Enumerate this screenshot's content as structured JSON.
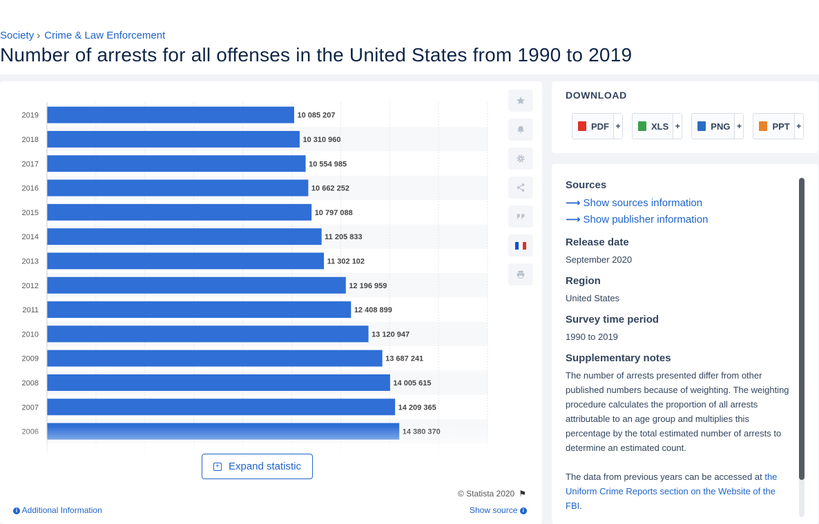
{
  "breadcrumb": {
    "items": [
      "Society",
      "Crime & Law Enforcement"
    ]
  },
  "page_title": "Number of arrests for all offenses in the United States from 1990 to 2019",
  "chart_data": {
    "type": "bar",
    "orientation": "horizontal",
    "title": "",
    "xlabel": "",
    "ylabel": "",
    "categories": [
      "2019",
      "2018",
      "2017",
      "2016",
      "2015",
      "2014",
      "2013",
      "2012",
      "2011",
      "2010",
      "2009",
      "2008",
      "2007",
      "2006"
    ],
    "values": [
      10085207,
      10310960,
      10554985,
      10662252,
      10797088,
      11205833,
      11302102,
      12196959,
      12408899,
      13120947,
      13687241,
      14005615,
      14209365,
      14380370
    ],
    "value_labels": [
      "10 085 207",
      "10 310 960",
      "10 554 985",
      "10 662 252",
      "10 797 088",
      "11 205 833",
      "11 302 102",
      "12 196 959",
      "12 408 899",
      "13 120 947",
      "13 687 241",
      "14 005 615",
      "14 209 365",
      "14 380 370"
    ],
    "xlim": [
      0,
      18000000
    ],
    "grid": true,
    "bar_color": "#2f6fd6"
  },
  "toolbar": {
    "icons": [
      "star-icon",
      "bell-icon",
      "gear-icon",
      "share-icon",
      "quote-icon",
      "french-flag-icon",
      "print-icon"
    ],
    "flag_colors": [
      "#0f4fc9",
      "#ffffff",
      "#e0302a"
    ]
  },
  "expand_label": "Expand statistic",
  "copyright": "© Statista 2020",
  "additional_info": "Additional Information",
  "show_source": "Show source",
  "download": {
    "heading": "DOWNLOAD",
    "buttons": [
      {
        "label": "PDF",
        "color": "#e0312a"
      },
      {
        "label": "XLS",
        "color": "#3aa04a"
      },
      {
        "label": "PNG",
        "color": "#2b6cc4"
      },
      {
        "label": "PPT",
        "color": "#e9832b"
      }
    ],
    "plus": "+"
  },
  "info": {
    "sources_head": "Sources",
    "sources_link": "Show sources information",
    "publisher_link": "Show publisher information",
    "release_head": "Release date",
    "release_val": "September 2020",
    "region_head": "Region",
    "region_val": "United States",
    "period_head": "Survey time period",
    "period_val": "1990 to 2019",
    "notes_head": "Supplementary notes",
    "notes_p1": "The number of arrests presented differ from other published numbers because of weighting. The weighting procedure calculates the proportion of all arrests attributable to an age group and multiplies this percentage by the total estimated number of arrests to determine an estimated count.",
    "notes_p2": "The data from previous years can be accessed at",
    "notes_link": "the Uniform Crime Reports section on the Website of the FBI",
    "notes_end": "."
  }
}
